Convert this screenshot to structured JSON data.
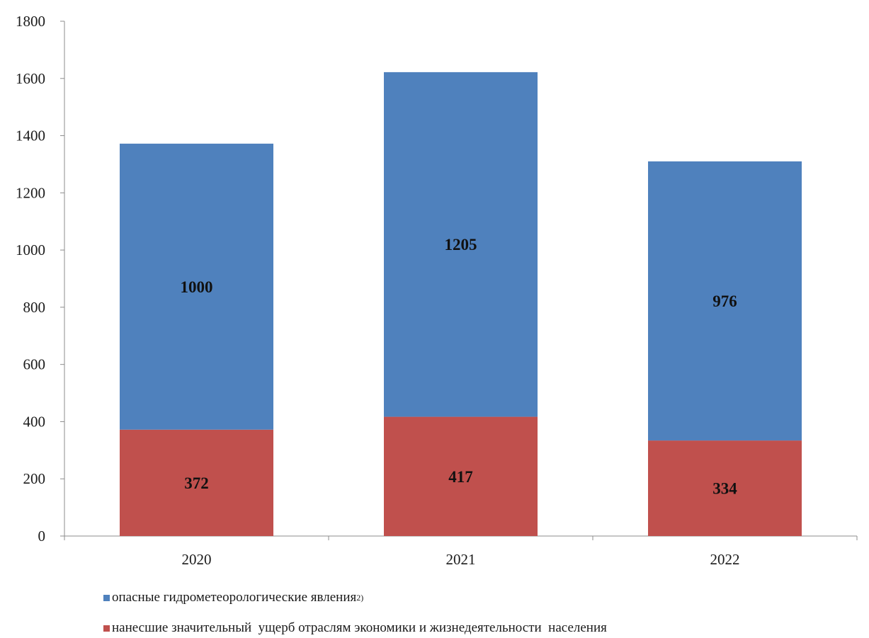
{
  "chart_data": {
    "type": "bar",
    "stacked": true,
    "categories": [
      "2020",
      "2021",
      "2022"
    ],
    "series": [
      {
        "key": "damage",
        "name": "нанесшие значительный  ущерб отраслям экономики и жизнедеятельности  населения",
        "values": [
          372,
          417,
          334
        ],
        "color": "#c0504d"
      },
      {
        "key": "hazardous",
        "name": "опасные гидрометеорологические явления",
        "name_suffix": "2)",
        "values": [
          1000,
          1205,
          976
        ],
        "color": "#4f81bd"
      }
    ],
    "ylim": [
      0,
      1800
    ],
    "yticks": [
      "0",
      "200",
      "400",
      "600",
      "800",
      "1000",
      "1200",
      "1400",
      "1600",
      "1800"
    ],
    "grid": false,
    "legend_position": "bottom-left",
    "title": "",
    "xlabel": "",
    "ylabel": ""
  }
}
